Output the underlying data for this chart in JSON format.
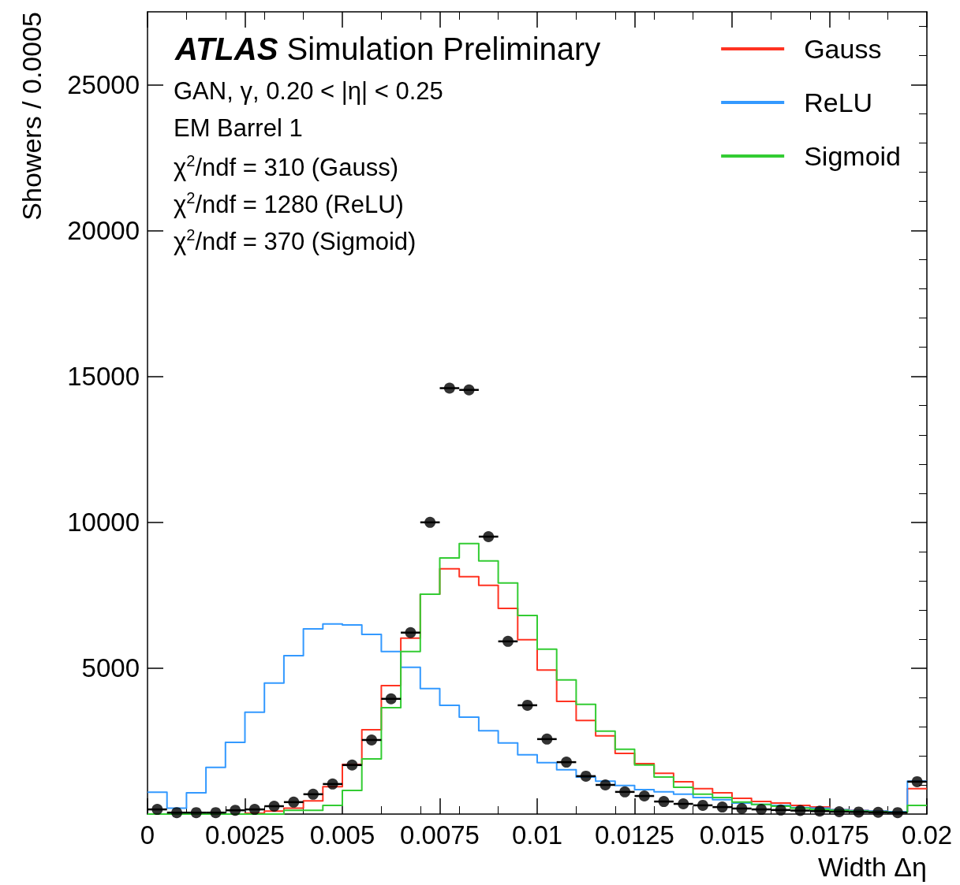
{
  "chart_data": {
    "type": "histogram",
    "title": "ATLAS Simulation Preliminary",
    "xlabel": "Width Δη",
    "ylabel": "Showers / 0.0005",
    "annotations": [
      "GAN, γ, 0.20 < |η| < 0.25",
      "EM Barrel 1",
      "χ$^{2}$/ndf = 310 (Gauss)",
      "χ$^{2}$/ndf = 1280 (ReLU)",
      "χ$^{2}$/ndf = 370 (Sigmoid)"
    ],
    "bins": [
      0,
      0.0005,
      0.001,
      0.0015,
      0.002,
      0.0025,
      0.003,
      0.0035,
      0.004,
      0.0045,
      0.005,
      0.0055,
      0.006,
      0.0065,
      0.007,
      0.0075,
      0.008,
      0.0085,
      0.009,
      0.0095,
      0.01,
      0.0105,
      0.011,
      0.0115,
      0.012,
      0.0125,
      0.013,
      0.0135,
      0.014,
      0.0145,
      0.015,
      0.0155,
      0.016,
      0.0165,
      0.017,
      0.0175,
      0.018,
      0.0185,
      0.019,
      0.0195,
      0.02
    ],
    "series": [
      {
        "type": "scatter",
        "color": "#000000",
        "marker": "circle",
        "x": [
          0.00025,
          0.00075,
          0.00125,
          0.00175,
          0.00225,
          0.00275,
          0.00325,
          0.00375,
          0.00425,
          0.00475,
          0.00525,
          0.00575,
          0.00625,
          0.00675,
          0.00725,
          0.00775,
          0.00825,
          0.00875,
          0.00925,
          0.00975,
          0.01025,
          0.01075,
          0.01125,
          0.01175,
          0.01225,
          0.01275,
          0.01325,
          0.01375,
          0.01425,
          0.01475,
          0.01525,
          0.01575,
          0.01625,
          0.01675,
          0.01725,
          0.01775,
          0.01825,
          0.01875,
          0.01925,
          0.01975
        ],
        "values": [
          160,
          50,
          50,
          50,
          130,
          160,
          270,
          410,
          680,
          1030,
          1680,
          2540,
          3950,
          6220,
          10000,
          14600,
          14540,
          9510,
          5920,
          3730,
          2570,
          1780,
          1300,
          1000,
          760,
          620,
          430,
          350,
          300,
          240,
          190,
          160,
          140,
          120,
          100,
          80,
          70,
          60,
          50,
          1110
        ],
        "xerrors": [
          0.00025,
          0.00025,
          0.00025,
          0.00025,
          0.00025,
          0.00025,
          0.00025,
          0.00025,
          0.00025,
          0.00025,
          0.00025,
          0.00025,
          0.00025,
          0.00025,
          0.00025,
          0.00025,
          0.00025,
          0.00025,
          0.00025,
          0.00025,
          0.00025,
          0.00025,
          0.00025,
          0.00025,
          0.00025,
          0.00025,
          0.00025,
          0.00025,
          0.00025,
          0.00025,
          0.00025,
          0.00025,
          0.00025,
          0.00025,
          0.00025,
          0.00025,
          0.00025,
          0.00025,
          0.00025,
          0.00025
        ]
      },
      {
        "name": "Gauss",
        "color": "#ff3322",
        "values": [
          0,
          0,
          0,
          0,
          0,
          30,
          100,
          200,
          450,
          940,
          1700,
          2890,
          4400,
          6030,
          7540,
          8410,
          8140,
          7840,
          7050,
          5980,
          4940,
          3860,
          3210,
          2680,
          2080,
          1730,
          1400,
          1110,
          870,
          730,
          540,
          430,
          380,
          300,
          240,
          150,
          120,
          100,
          80,
          870
        ]
      },
      {
        "name": "ReLU",
        "color": "#3399ff",
        "values": [
          750,
          200,
          730,
          1600,
          2460,
          3490,
          4490,
          5430,
          6350,
          6520,
          6480,
          6160,
          5570,
          5030,
          4300,
          3730,
          3320,
          2860,
          2440,
          2030,
          1760,
          1520,
          1270,
          1130,
          980,
          840,
          760,
          680,
          570,
          490,
          380,
          330,
          300,
          220,
          200,
          150,
          120,
          100,
          80,
          1130
        ]
      },
      {
        "name": "Sigmoid",
        "color": "#33cc33",
        "values": [
          0,
          0,
          0,
          0,
          0,
          0,
          0,
          130,
          130,
          300,
          810,
          1890,
          3650,
          5570,
          7540,
          8780,
          9270,
          8680,
          7920,
          6810,
          5650,
          4600,
          3760,
          2840,
          2220,
          1680,
          1270,
          920,
          680,
          570,
          410,
          330,
          270,
          200,
          160,
          130,
          100,
          80,
          60,
          300
        ]
      }
    ],
    "xlim": [
      0,
      0.02
    ],
    "xticks": [
      0,
      0.0025,
      0.005,
      0.0075,
      0.01,
      0.0125,
      0.015,
      0.0175,
      0.02
    ],
    "ylim": [
      0,
      27500
    ],
    "yticks": [
      5000,
      10000,
      15000,
      20000,
      25000
    ],
    "grid": false,
    "legend": "top right"
  }
}
